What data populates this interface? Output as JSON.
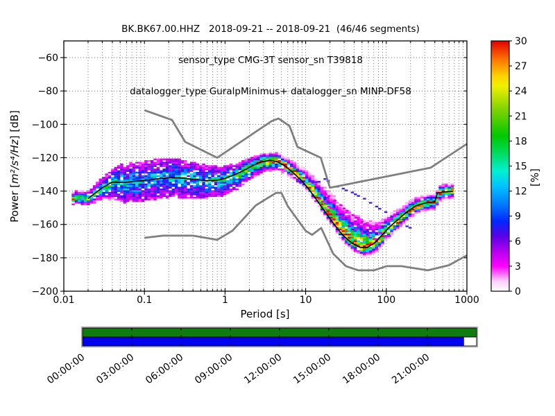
{
  "title": {
    "line1": "BK.BK67.00.HHZ   2018-09-21 -- 2018-09-21  (46/46 segments)",
    "line2": "sensor_type CMG-3T sensor_sn T39818",
    "line3": "datalogger_type GuralpMinimus+ datalogger_sn MINP-DF58"
  },
  "axes": {
    "xlabel": "Period [s]",
    "ylabel": {
      "prefix": "Power [",
      "math": "m²/s⁴/Hz",
      "suffix": "] [dB]"
    },
    "x_ticks": [
      {
        "value": 0.01,
        "label": "0.01"
      },
      {
        "value": 0.1,
        "label": "0.1"
      },
      {
        "value": 1,
        "label": "1"
      },
      {
        "value": 10,
        "label": "10"
      },
      {
        "value": 100,
        "label": "100"
      },
      {
        "value": 1000,
        "label": "1000"
      }
    ],
    "y_ticks": [
      {
        "value": -60,
        "label": "−60"
      },
      {
        "value": -80,
        "label": "−80"
      },
      {
        "value": -100,
        "label": "−100"
      },
      {
        "value": -120,
        "label": "−120"
      },
      {
        "value": -140,
        "label": "−140"
      },
      {
        "value": -160,
        "label": "−160"
      },
      {
        "value": -180,
        "label": "−180"
      },
      {
        "value": -200,
        "label": "−200"
      }
    ]
  },
  "colorbar": {
    "label": "[%]",
    "min": 0,
    "max": 30,
    "ticks": [
      0,
      3,
      6,
      9,
      12,
      15,
      18,
      21,
      24,
      27,
      30
    ],
    "stops": [
      [
        0.0,
        "#ffffff"
      ],
      [
        0.04,
        "#ffd0ff"
      ],
      [
        0.1,
        "#ff00ff"
      ],
      [
        0.16,
        "#b400f0"
      ],
      [
        0.22,
        "#5a00e6"
      ],
      [
        0.28,
        "#0028ff"
      ],
      [
        0.34,
        "#0073ff"
      ],
      [
        0.42,
        "#00c3ff"
      ],
      [
        0.48,
        "#00f0d2"
      ],
      [
        0.55,
        "#00dc64"
      ],
      [
        0.62,
        "#00c800"
      ],
      [
        0.72,
        "#78d200"
      ],
      [
        0.82,
        "#f0f000"
      ],
      [
        0.86,
        "#ffd200"
      ],
      [
        0.92,
        "#ff7d00"
      ],
      [
        1.0,
        "#e10000"
      ]
    ]
  },
  "chart_data": {
    "type": "heatmap",
    "title": "Probabilistic power spectral density, BK.BK67.00.HHZ, 2018-09-21, 46/46 segments",
    "x_axis": {
      "label": "Period [s]",
      "scale": "log",
      "range": [
        0.01,
        1000
      ],
      "minor_grid": true
    },
    "y_axis": {
      "label": "Power [m^2/s^4/Hz] [dB]",
      "range": [
        -200,
        -50
      ],
      "grid_step": 20
    },
    "percent_axis": {
      "label": "[%]",
      "range": [
        0,
        30
      ],
      "tick_step": 3
    },
    "grid": true,
    "legend_position": "none",
    "period_bin_step_decades": 0.0376288,
    "db_bin_width": 1,
    "mode_curve": [
      [
        0.02,
        -144.5
      ],
      [
        0.024,
        -141.5
      ],
      [
        0.03,
        -138
      ],
      [
        0.04,
        -134.6
      ],
      [
        0.055,
        -134.9
      ],
      [
        0.07,
        -134.3
      ],
      [
        0.09,
        -133.8
      ],
      [
        0.12,
        -133.2
      ],
      [
        0.16,
        -132.4
      ],
      [
        0.22,
        -131.9
      ],
      [
        0.3,
        -132.3
      ],
      [
        0.42,
        -133
      ],
      [
        0.6,
        -133.8
      ],
      [
        0.8,
        -133.5
      ],
      [
        1.0,
        -132.4
      ],
      [
        1.3,
        -130.3
      ],
      [
        1.7,
        -127.6
      ],
      [
        2.2,
        -124.7
      ],
      [
        2.8,
        -122.6
      ],
      [
        3.6,
        -121.6
      ],
      [
        4.4,
        -122.3
      ],
      [
        5.5,
        -124.8
      ],
      [
        7,
        -129
      ],
      [
        9,
        -134
      ],
      [
        11,
        -139
      ],
      [
        14,
        -146
      ],
      [
        18,
        -153.5
      ],
      [
        23,
        -160.5
      ],
      [
        29,
        -166.5
      ],
      [
        37,
        -171
      ],
      [
        47,
        -173.7
      ],
      [
        58,
        -173.8
      ],
      [
        72,
        -171
      ],
      [
        90,
        -166
      ],
      [
        110,
        -161.5
      ],
      [
        140,
        -157
      ],
      [
        180,
        -152.5
      ],
      [
        230,
        -149
      ],
      [
        300,
        -147.2
      ],
      [
        400,
        -146.4
      ],
      [
        430,
        -141.2
      ],
      [
        520,
        -140.5
      ],
      [
        675,
        -140.1
      ]
    ],
    "density_band": [
      [
        0.0125,
        3,
        2.5,
        22,
        0.3
      ],
      [
        0.02,
        3.5,
        3,
        20,
        0.35
      ],
      [
        0.03,
        5,
        5,
        16,
        0.5
      ],
      [
        0.05,
        8,
        9,
        12.5,
        0.75
      ],
      [
        0.1,
        9,
        9.5,
        12,
        0.8
      ],
      [
        0.2,
        9,
        9,
        12,
        0.8
      ],
      [
        0.4,
        7.5,
        9,
        12.5,
        0.78
      ],
      [
        0.7,
        6.5,
        8,
        13,
        0.75
      ],
      [
        1,
        6,
        7,
        15,
        0.6
      ],
      [
        1.6,
        5,
        6,
        19,
        0.45
      ],
      [
        2.5,
        4,
        5,
        24,
        0.3
      ],
      [
        3.6,
        3.5,
        5,
        27,
        0.2
      ],
      [
        5,
        3.5,
        4,
        28,
        0.15
      ],
      [
        8,
        5,
        3,
        28,
        0.12
      ],
      [
        12,
        8,
        3,
        28,
        0.1
      ],
      [
        20,
        12,
        3,
        27,
        0.1
      ],
      [
        30,
        14,
        3.5,
        25,
        0.12
      ],
      [
        45,
        15,
        4,
        24,
        0.15
      ],
      [
        60,
        12,
        4,
        24,
        0.15
      ],
      [
        80,
        9,
        4,
        25,
        0.12
      ],
      [
        110,
        6,
        4,
        26,
        0.12
      ],
      [
        160,
        5,
        3.5,
        26,
        0.12
      ],
      [
        250,
        4,
        3.5,
        27,
        0.12
      ],
      [
        400,
        4,
        3.5,
        27,
        0.12
      ],
      [
        680,
        3.5,
        3.5,
        26,
        0.12
      ]
    ],
    "noise_models": {
      "color": "#7f7f7f",
      "high": [
        [
          0.1,
          -91.5
        ],
        [
          0.22,
          -97.4
        ],
        [
          0.32,
          -110.5
        ],
        [
          0.8,
          -120
        ],
        [
          3.8,
          -98
        ],
        [
          4.6,
          -96.5
        ],
        [
          6.3,
          -101
        ],
        [
          7.9,
          -113.5
        ],
        [
          15.4,
          -120
        ],
        [
          20,
          -138
        ],
        [
          354.8,
          -126
        ],
        [
          1000,
          -111.7
        ]
      ],
      "low": [
        [
          0.1,
          -168
        ],
        [
          0.17,
          -166.7
        ],
        [
          0.4,
          -166.7
        ],
        [
          0.8,
          -169.2
        ],
        [
          1.24,
          -163.7
        ],
        [
          2.4,
          -148.6
        ],
        [
          4.3,
          -141.1
        ],
        [
          5,
          -141.1
        ],
        [
          6,
          -149
        ],
        [
          10,
          -163.8
        ],
        [
          12,
          -166.2
        ],
        [
          15.6,
          -162.1
        ],
        [
          21.9,
          -177.5
        ],
        [
          31.6,
          -185
        ],
        [
          45,
          -187.5
        ],
        [
          70,
          -187.5
        ],
        [
          101,
          -185
        ],
        [
          154,
          -185
        ],
        [
          328,
          -187.5
        ],
        [
          600,
          -184.4
        ],
        [
          1000,
          -178.5
        ]
      ]
    },
    "mode_line_color": "#000000",
    "outlier_traces": [
      {
        "color": "#4422ee",
        "points": [
          [
            7,
            -134
          ],
          [
            10,
            -134.5
          ],
          [
            14,
            -134.3
          ],
          [
            16,
            -132.6
          ],
          [
            19,
            -135
          ],
          [
            24,
            -137.5
          ],
          [
            30,
            -139.5
          ],
          [
            40,
            -142
          ],
          [
            52,
            -145
          ],
          [
            68,
            -148.5
          ],
          [
            88,
            -152
          ],
          [
            115,
            -155.5
          ],
          [
            150,
            -159
          ],
          [
            200,
            -162.5
          ]
        ]
      },
      {
        "color": "#ee00ee",
        "points": [
          [
            11,
            -140
          ],
          [
            14,
            -144
          ],
          [
            18,
            -148.5
          ],
          [
            23,
            -153
          ],
          [
            30,
            -158
          ],
          [
            40,
            -162.5
          ],
          [
            52,
            -166
          ],
          [
            68,
            -168.5
          ],
          [
            85,
            -170
          ]
        ]
      },
      {
        "color": "#dd00dd",
        "points": [
          [
            17,
            -142
          ],
          [
            22,
            -146
          ],
          [
            29,
            -150.5
          ],
          [
            38,
            -155
          ],
          [
            50,
            -159
          ],
          [
            65,
            -162.5
          ],
          [
            85,
            -165.5
          ],
          [
            110,
            -167.5
          ]
        ]
      }
    ],
    "availability": {
      "hours": 24,
      "tick_step_hours": 3,
      "rows": [
        {
          "name": "psd-segment-coverage",
          "color": "#0e7c0e",
          "fraction": 1.0
        },
        {
          "name": "data-coverage",
          "color": "#0000ee",
          "fraction": 0.967
        }
      ],
      "time_labels": [
        "00:00:00",
        "03:00:00",
        "06:00:00",
        "09:00:00",
        "12:00:00",
        "15:00:00",
        "18:00:00",
        "21:00:00"
      ]
    }
  }
}
